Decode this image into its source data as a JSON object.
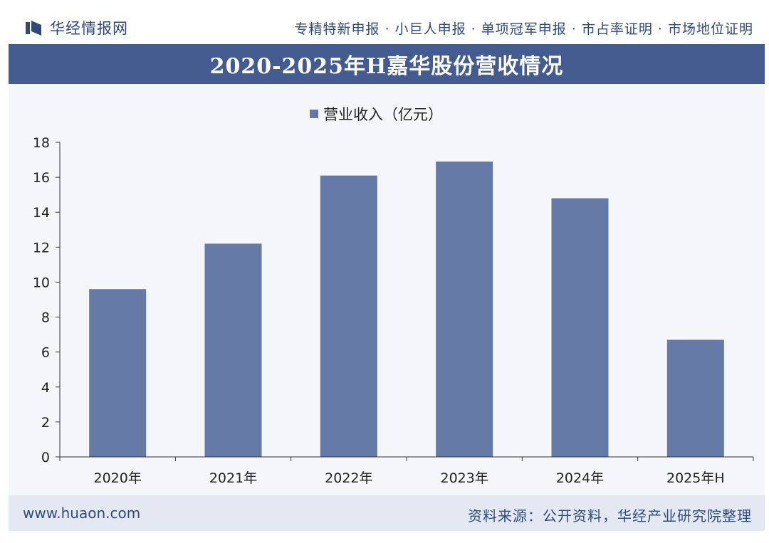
{
  "header": {
    "logo_text": "华经情报网",
    "tagline": "专精特新申报 · 小巨人申报 · 单项冠军申报 · 市占率证明 · 市场地位证明"
  },
  "colors": {
    "brand": "#435b8f",
    "bar": "#6579a6",
    "text": "#2f4a7a"
  },
  "chart_data": {
    "type": "bar",
    "title": "2020-2025年H嘉华股份营收情况",
    "legend": "营业收入（亿元）",
    "legend_position": "top-center",
    "categories": [
      "2020年",
      "2021年",
      "2022年",
      "2023年",
      "2024年",
      "2025年H"
    ],
    "series": [
      {
        "name": "营业收入（亿元）",
        "values": [
          9.6,
          12.2,
          16.1,
          16.9,
          14.8,
          6.7
        ]
      }
    ],
    "ylim": [
      0,
      18
    ],
    "yticks": [
      "0",
      "2",
      "4",
      "6",
      "8",
      "10",
      "12",
      "14",
      "16",
      "18"
    ],
    "grid": false
  },
  "footer": {
    "url": "www.huaon.com",
    "source": "资料来源：公开资料，华经产业研究院整理"
  }
}
